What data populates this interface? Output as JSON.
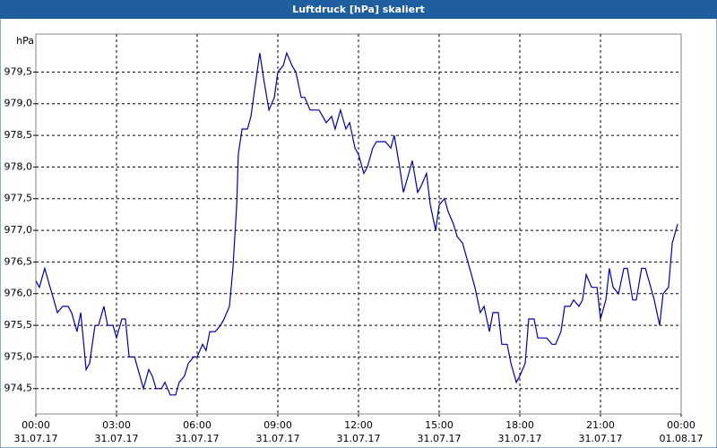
{
  "chart_data": {
    "type": "line",
    "title": "Luftdruck [hPa] skaliert",
    "ylabel": "hPa",
    "xlim": [
      0,
      24
    ],
    "ylim": [
      974.1,
      980.1
    ],
    "grid": true,
    "xticks": [
      {
        "value": 0,
        "label": "00:00"
      },
      {
        "value": 3,
        "label": "03:00"
      },
      {
        "value": 6,
        "label": "06:00"
      },
      {
        "value": 9,
        "label": "09:00"
      },
      {
        "value": 12,
        "label": "12:00"
      },
      {
        "value": 15,
        "label": "15:00"
      },
      {
        "value": 18,
        "label": "18:00"
      },
      {
        "value": 21,
        "label": "21:00"
      },
      {
        "value": 24,
        "label": "00:00"
      }
    ],
    "xtick_dates": [
      "31.07.17",
      "31.07.17",
      "31.07.17",
      "31.07.17",
      "31.07.17",
      "31.07.17",
      "31.07.17",
      "31.07.17",
      "01.08.17"
    ],
    "yticks": [
      {
        "value": 974.5,
        "label": "974,5"
      },
      {
        "value": 975,
        "label": "975,0"
      },
      {
        "value": 975.5,
        "label": "975,5"
      },
      {
        "value": 976,
        "label": "976,0"
      },
      {
        "value": 976.5,
        "label": "976,5"
      },
      {
        "value": 977,
        "label": "977,0"
      },
      {
        "value": 977.5,
        "label": "977,5"
      },
      {
        "value": 978,
        "label": "978,0"
      },
      {
        "value": 978.5,
        "label": "978,5"
      },
      {
        "value": 979,
        "label": "979,0"
      },
      {
        "value": 979.5,
        "label": "979,5"
      }
    ],
    "series": [
      {
        "color": "#0000a8",
        "x": [
          0,
          0.13,
          0.33,
          0.53,
          0.67,
          0.8,
          1,
          1.2,
          1.33,
          1.53,
          1.67,
          1.87,
          2,
          2.2,
          2.33,
          2.53,
          2.67,
          2.87,
          3,
          3.2,
          3.33,
          3.47,
          3.67,
          3.87,
          4,
          4.2,
          4.33,
          4.47,
          4.67,
          4.8,
          5,
          5.2,
          5.33,
          5.53,
          5.67,
          5.87,
          6,
          6.2,
          6.33,
          6.47,
          6.67,
          6.87,
          7,
          7.2,
          7.33,
          7.47,
          7.53,
          7.67,
          7.87,
          8,
          8.13,
          8.33,
          8.47,
          8.67,
          8.87,
          9,
          9.2,
          9.33,
          9.53,
          9.67,
          9.87,
          10,
          10.2,
          10.33,
          10.53,
          10.67,
          10.8,
          11,
          11.13,
          11.33,
          11.53,
          11.67,
          11.87,
          12,
          12.2,
          12.33,
          12.53,
          12.67,
          12.87,
          13,
          13.2,
          13.33,
          13.53,
          13.67,
          13.87,
          14,
          14.2,
          14.33,
          14.53,
          14.67,
          14.87,
          15,
          15.2,
          15.33,
          15.53,
          15.67,
          15.87,
          16,
          16.2,
          16.33,
          16.53,
          16.67,
          16.87,
          17,
          17.2,
          17.33,
          17.53,
          17.67,
          17.87,
          18,
          18.2,
          18.33,
          18.53,
          18.67,
          18.87,
          19,
          19.2,
          19.33,
          19.53,
          19.67,
          19.87,
          20,
          20.2,
          20.33,
          20.47,
          20.67,
          20.87,
          21,
          21.2,
          21.33,
          21.47,
          21.67,
          21.87,
          22,
          22.2,
          22.33,
          22.53,
          22.67,
          22.87,
          23,
          23.2,
          23.33,
          23.53,
          23.67,
          23.87
        ],
        "values": [
          976.2,
          976.1,
          976.4,
          976.1,
          975.9,
          975.7,
          975.8,
          975.8,
          975.7,
          975.4,
          975.7,
          974.8,
          974.9,
          975.5,
          975.5,
          975.8,
          975.5,
          975.5,
          975.3,
          975.6,
          975.6,
          975.0,
          975.0,
          974.7,
          974.5,
          974.8,
          974.7,
          974.5,
          974.5,
          974.6,
          974.4,
          974.4,
          974.6,
          974.7,
          974.9,
          975.0,
          975.0,
          975.2,
          975.1,
          975.4,
          975.4,
          975.5,
          975.6,
          975.8,
          976.4,
          977.4,
          978.2,
          978.6,
          978.6,
          978.8,
          979.2,
          979.8,
          979.4,
          978.9,
          979.1,
          979.5,
          979.6,
          979.8,
          979.6,
          979.5,
          979.1,
          979.1,
          978.9,
          978.9,
          978.9,
          978.8,
          978.7,
          978.8,
          978.6,
          978.9,
          978.6,
          978.7,
          978.3,
          978.2,
          977.9,
          978.0,
          978.3,
          978.4,
          978.4,
          978.4,
          978.3,
          978.5,
          978.0,
          977.6,
          977.9,
          978.1,
          977.6,
          977.7,
          977.9,
          977.4,
          977.0,
          977.4,
          977.5,
          977.3,
          977.1,
          976.9,
          976.8,
          976.6,
          976.3,
          976.1,
          975.7,
          975.8,
          975.4,
          975.7,
          975.7,
          975.2,
          975.2,
          974.9,
          974.6,
          974.7,
          974.9,
          975.6,
          975.6,
          975.3,
          975.3,
          975.3,
          975.2,
          975.2,
          975.4,
          975.8,
          975.8,
          975.9,
          975.8,
          975.9,
          976.3,
          976.1,
          976.1,
          975.6,
          975.9,
          976.4,
          976.1,
          976.0,
          976.4,
          976.4,
          975.9,
          975.9,
          976.4,
          976.4,
          976.1,
          975.9,
          975.5,
          976.0,
          976.1,
          976.8,
          977.1
        ]
      }
    ]
  }
}
